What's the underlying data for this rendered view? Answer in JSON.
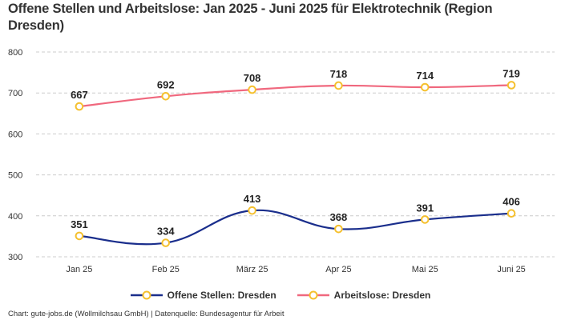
{
  "title": "Offene Stellen und Arbeitslose: Jan 2025 - Juni 2025 für Elektrotechnik (Region Dresden)",
  "footer": "Chart: gute-jobs.de (Wollmilchsau GmbH) | Datenquelle: Bundesagentur für Arbeit",
  "chart_data": {
    "type": "line",
    "title": "Offene Stellen und Arbeitslose: Jan 2025 - Juni 2025 für Elektrotechnik (Region Dresden)",
    "xlabel": "",
    "ylabel": "",
    "categories": [
      "Jan 25",
      "Feb 25",
      "März 25",
      "Apr 25",
      "Mai 25",
      "Juni 25"
    ],
    "ylim": [
      300,
      800
    ],
    "yticks": [
      "300",
      "400",
      "500",
      "600",
      "700",
      "800"
    ],
    "grid": true,
    "legend_position": "bottom",
    "series": [
      {
        "name": "Offene Stellen: Dresden",
        "color": "#1a2e8c",
        "values": [
          351,
          334,
          413,
          368,
          391,
          406
        ],
        "labels": [
          "351",
          "334",
          "413",
          "368",
          "391",
          "406"
        ]
      },
      {
        "name": "Arbeitslose: Dresden",
        "color": "#f0687e",
        "values": [
          667,
          692,
          708,
          718,
          714,
          719
        ],
        "labels": [
          "667",
          "692",
          "708",
          "718",
          "714",
          "719"
        ]
      }
    ],
    "marker_color": "#f5c02e"
  }
}
